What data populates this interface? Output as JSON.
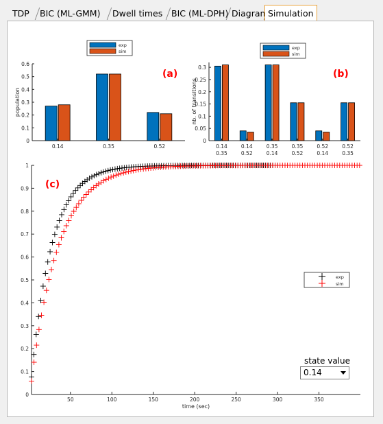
{
  "tabs": [
    {
      "label": "TDP",
      "active": false
    },
    {
      "label": "BIC (ML-GMM)",
      "active": false
    },
    {
      "label": "Dwell times",
      "active": false
    },
    {
      "label": "BIC (ML-DPH)",
      "active": false
    },
    {
      "label": "Diagram",
      "active": false
    },
    {
      "label": "Simulation",
      "active": true
    }
  ],
  "state_selector": {
    "label": "state value",
    "selected": "0.14"
  },
  "colors": {
    "exp": "#0072bd",
    "sim": "#d95319",
    "exp_cdf": "#000000",
    "sim_cdf": "#ff0000",
    "panel_letter": "#ff0000",
    "tab_active_border": "#e8a23a"
  },
  "chart_data": [
    {
      "panel": "(a)",
      "type": "bar",
      "categories": [
        "0.14",
        "0.35",
        "0.52"
      ],
      "series": [
        {
          "name": "exp",
          "values": [
            0.27,
            0.52,
            0.22
          ]
        },
        {
          "name": "sim",
          "values": [
            0.28,
            0.52,
            0.21
          ]
        }
      ],
      "ylabel": "population",
      "xlabel": "",
      "ylim": [
        0,
        0.6
      ],
      "yticks": [
        "0",
        "0.1",
        "0.2",
        "0.3",
        "0.4",
        "0.5",
        "0.6"
      ],
      "legend": "top-center"
    },
    {
      "panel": "(b)",
      "type": "bar",
      "categories": [
        [
          "0.14",
          "0.35"
        ],
        [
          "0.14",
          "0.52"
        ],
        [
          "0.35",
          "0.14"
        ],
        [
          "0.35",
          "0.52"
        ],
        [
          "0.52",
          "0.14"
        ],
        [
          "0.52",
          "0.35"
        ]
      ],
      "series": [
        {
          "name": "exp",
          "values": [
            0.305,
            0.04,
            0.31,
            0.155,
            0.04,
            0.155
          ]
        },
        {
          "name": "sim",
          "values": [
            0.31,
            0.035,
            0.31,
            0.155,
            0.035,
            0.155
          ]
        }
      ],
      "ylabel": "nb. of transitions",
      "xlabel": "",
      "ylim": [
        0,
        0.32
      ],
      "yticks": [
        "0",
        "0.05",
        "0.1",
        "0.15",
        "0.2",
        "0.25",
        "0.3"
      ],
      "legend": "top-center"
    },
    {
      "panel": "(c)",
      "type": "scatter",
      "xlabel": "time (sec)",
      "ylabel": "",
      "xlim": [
        3,
        400
      ],
      "ylim": [
        0,
        1
      ],
      "xticks": [
        "50",
        "100",
        "150",
        "200",
        "250",
        "300",
        "350"
      ],
      "yticks": [
        "0",
        "0.1",
        "0.2",
        "0.3",
        "0.4",
        "0.5",
        "0.6",
        "0.7",
        "0.8",
        "0.9",
        "1"
      ],
      "marker": "+",
      "legend": "right",
      "series": [
        {
          "name": "exp",
          "tau": 25,
          "x_start": 3,
          "x_step": 2.8,
          "x_end": 300
        },
        {
          "name": "sim",
          "tau": 33,
          "x_start": 3,
          "x_step": 3.0,
          "x_end": 400
        }
      ]
    }
  ]
}
